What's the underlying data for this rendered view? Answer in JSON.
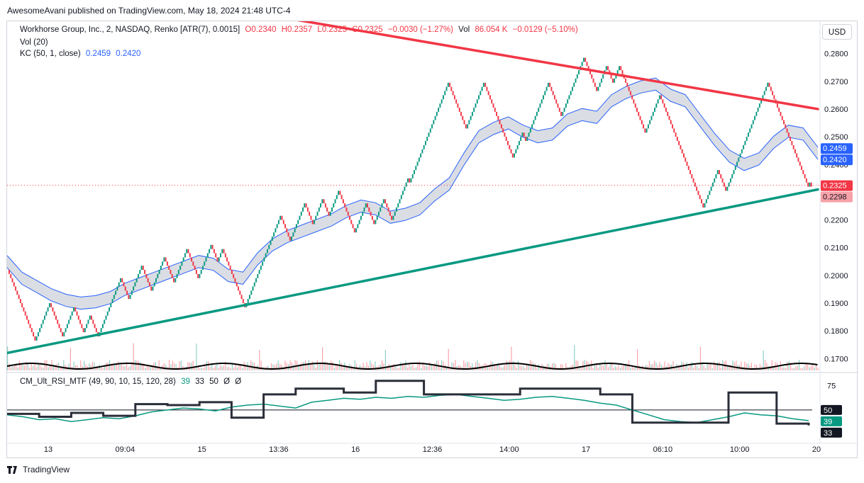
{
  "header": {
    "publisher_line": "AwesomeAvani published on TradingView.com, May 18, 2024 21:48 UTC-4"
  },
  "legend": {
    "symbol": "Workhorse Group, Inc., 2, NASDAQ, Renko [ATR(7), 0.0015]",
    "o": "O0.2340",
    "h": "H0.2357",
    "l": "L0.2325",
    "c": "C0.2325",
    "change": "−0.0030 (−1.27%)",
    "vol_label": "Vol",
    "vol_value": "86.054 K",
    "vol_change": "−0.0129 (−5.10%)",
    "vol_indicator": "Vol (20)",
    "kc_label": "KC (50, 1, close)",
    "kc_upper": "0.2459",
    "kc_lower": "0.2420",
    "rsi_label": "CM_Ult_RSI_MTF (49, 90, 10, 15, 120, 28)",
    "rsi_v1": "39",
    "rsi_v2": "33",
    "rsi_v3": "50",
    "rsi_v4": "Ø",
    "rsi_v5": "Ø"
  },
  "controls": {
    "currency_button": "USD"
  },
  "footer": {
    "logo_text": "TradingView"
  },
  "colors": {
    "up": "#089981",
    "down": "#f23645",
    "kc_band": "#2962ff",
    "kc_fill": "#d1d4dc",
    "resistance": "#f23645",
    "support": "#089981",
    "rsi_line": "#089981",
    "rsi_htf": "#2a2e39"
  },
  "chart_data": [
    {
      "type": "renko",
      "title": "Workhorse Group, Inc., 2, NASDAQ, Renko [ATR(7), 0.0015]",
      "y_ticks": [
        "0.2800",
        "0.2700",
        "0.2600",
        "0.2500",
        "0.2400",
        "0.2200",
        "0.2100",
        "0.2000",
        "0.1900",
        "0.1800",
        "0.1700"
      ],
      "ylim": [
        0.1665,
        0.284
      ],
      "x_ticks": [
        "13",
        "09:04",
        "15",
        "13:36",
        "16",
        "12:36",
        "14:00",
        "17",
        "06:10",
        "10:00",
        "20"
      ],
      "brick_size": 0.0015,
      "close_path": [
        0.202,
        0.176,
        0.19,
        0.178,
        0.188,
        0.18,
        0.186,
        0.1775,
        0.199,
        0.191,
        0.204,
        0.195,
        0.207,
        0.197,
        0.21,
        0.199,
        0.211,
        0.205,
        0.21,
        0.2,
        0.188,
        0.196,
        0.221,
        0.213,
        0.226,
        0.218,
        0.228,
        0.221,
        0.23,
        0.215,
        0.226,
        0.218,
        0.228,
        0.22,
        0.235,
        0.233,
        0.27,
        0.253,
        0.269,
        0.259,
        0.242,
        0.252,
        0.248,
        0.269,
        0.257,
        0.279,
        0.266,
        0.276,
        0.269,
        0.275,
        0.261,
        0.252,
        0.265,
        0.225,
        0.238,
        0.23,
        0.238,
        0.269,
        0.255,
        0.232,
        0.234,
        0.2325
      ],
      "last_price": "0.2325",
      "alt_price": "0.2298",
      "keltner": {
        "upper_last": "0.2459",
        "lower_last": "0.2420",
        "mid": [
          0.205,
          0.199,
          0.196,
          0.193,
          0.191,
          0.19,
          0.1905,
          0.192,
          0.195,
          0.197,
          0.199,
          0.201,
          0.203,
          0.205,
          0.204,
          0.2,
          0.199,
          0.206,
          0.211,
          0.214,
          0.216,
          0.218,
          0.22,
          0.223,
          0.225,
          0.224,
          0.221,
          0.222,
          0.224,
          0.229,
          0.233,
          0.242,
          0.25,
          0.253,
          0.255,
          0.252,
          0.25,
          0.251,
          0.256,
          0.258,
          0.257,
          0.263,
          0.266,
          0.268,
          0.269,
          0.265,
          0.263,
          0.256,
          0.249,
          0.243,
          0.24,
          0.242,
          0.248,
          0.252,
          0.251,
          0.244
        ]
      },
      "trendlines": [
        {
          "name": "resistance",
          "from": [
            0.3,
            0.295
          ],
          "to": [
            1.0,
            0.26
          ]
        },
        {
          "name": "support",
          "from": [
            0.0,
            0.172
          ],
          "to": [
            1.0,
            0.231
          ]
        }
      ]
    },
    {
      "type": "line",
      "title": "CM_Ult_RSI_MTF (49, 90, 10, 15, 120, 28)",
      "y_ticks": [
        "75",
        "50"
      ],
      "ylim": [
        20,
        82
      ],
      "last_values": [
        "50",
        "39",
        "33"
      ],
      "rsi": [
        45,
        43,
        40,
        41,
        38,
        40,
        42,
        41,
        44,
        48,
        50,
        52,
        51,
        49,
        53,
        55,
        56,
        54,
        52,
        58,
        60,
        62,
        61,
        63,
        62,
        64,
        63,
        65,
        66,
        64,
        62,
        60,
        61,
        63,
        64,
        62,
        60,
        57,
        55,
        50,
        45,
        40,
        38,
        37,
        40,
        43,
        47,
        45,
        44,
        41,
        39
      ],
      "htf": [
        46,
        46,
        43,
        43,
        47,
        47,
        44,
        44,
        56,
        56,
        55,
        55,
        58,
        58,
        42,
        42,
        66,
        66,
        72,
        72,
        72,
        68,
        68,
        80,
        80,
        80,
        66,
        66,
        66,
        66,
        66,
        66,
        72,
        72,
        72,
        72,
        72,
        66,
        66,
        37,
        37,
        37,
        37,
        37,
        37,
        68,
        68,
        68,
        36,
        36,
        34
      ]
    }
  ]
}
